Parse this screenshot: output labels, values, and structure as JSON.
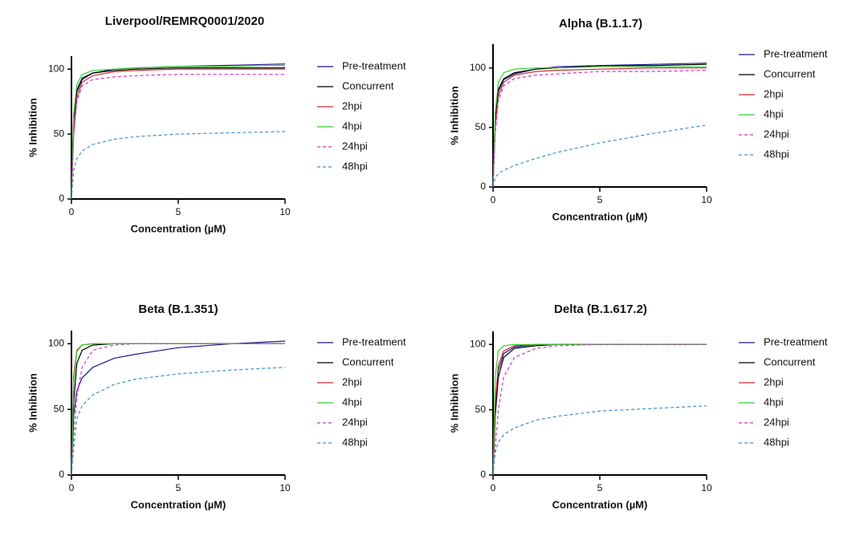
{
  "chart_data": [
    {
      "type": "line",
      "title": "Liverpool/REMRQ0001/2020",
      "x_label": "Concentration (µM)",
      "y_label": "% Inhibition",
      "x": [
        0,
        0.1,
        0.25,
        0.5,
        1,
        2,
        3,
        5,
        7.5,
        10
      ],
      "xlim": [
        0,
        10
      ],
      "xticks": [
        0,
        5,
        10
      ],
      "ylim": [
        0,
        110
      ],
      "yticks": [
        0,
        50,
        100
      ],
      "series": [
        {
          "name": "Pre-treatment",
          "color": "#1b1b8f",
          "dashed": false,
          "values": [
            0,
            60,
            82,
            92,
            97,
            100,
            101,
            102,
            103,
            104
          ]
        },
        {
          "name": "Concurrent",
          "color": "#000000",
          "dashed": false,
          "values": [
            0,
            62,
            84,
            93,
            97,
            99,
            100,
            101,
            101,
            101
          ]
        },
        {
          "name": "2hpi",
          "color": "#d42a2a",
          "dashed": false,
          "values": [
            0,
            50,
            78,
            90,
            95,
            98,
            99,
            100,
            100,
            100
          ]
        },
        {
          "name": "4hpi",
          "color": "#33cc33",
          "dashed": false,
          "values": [
            0,
            65,
            88,
            96,
            99,
            100,
            101,
            102,
            102,
            103
          ]
        },
        {
          "name": "24hpi",
          "color": "#cc33cc",
          "dashed": true,
          "values": [
            0,
            50,
            75,
            87,
            92,
            94,
            95,
            96,
            96,
            96
          ]
        },
        {
          "name": "48hpi",
          "color": "#3a8fd0",
          "dashed": true,
          "values": [
            0,
            22,
            31,
            37,
            42,
            46,
            48,
            50,
            51,
            52
          ]
        }
      ]
    },
    {
      "type": "line",
      "title": "Alpha (B.1.1.7)",
      "x_label": "Concentration (µM)",
      "y_label": "% Inhibition",
      "x": [
        0,
        0.1,
        0.25,
        0.5,
        1,
        2,
        3,
        5,
        7.5,
        10
      ],
      "xlim": [
        0,
        10
      ],
      "xticks": [
        0,
        5,
        10
      ],
      "ylim": [
        0,
        120
      ],
      "yticks": [
        0,
        50,
        100
      ],
      "series": [
        {
          "name": "Pre-treatment",
          "color": "#1b1b8f",
          "dashed": false,
          "values": [
            0,
            55,
            80,
            90,
            95,
            99,
            101,
            102,
            103,
            104
          ]
        },
        {
          "name": "Concurrent",
          "color": "#000000",
          "dashed": false,
          "values": [
            0,
            58,
            82,
            91,
            96,
            99,
            100,
            102,
            102,
            103
          ]
        },
        {
          "name": "2hpi",
          "color": "#d42a2a",
          "dashed": false,
          "values": [
            0,
            50,
            76,
            88,
            94,
            97,
            98,
            99,
            100,
            100
          ]
        },
        {
          "name": "4hpi",
          "color": "#33cc33",
          "dashed": false,
          "values": [
            0,
            62,
            88,
            96,
            99,
            100,
            100,
            101,
            101,
            101
          ]
        },
        {
          "name": "24hpi",
          "color": "#cc33cc",
          "dashed": true,
          "values": [
            0,
            45,
            72,
            85,
            91,
            94,
            95,
            97,
            97,
            98
          ]
        },
        {
          "name": "48hpi",
          "color": "#3a8fd0",
          "dashed": true,
          "values": [
            0,
            8,
            11,
            14,
            18,
            24,
            29,
            37,
            45,
            52
          ]
        }
      ]
    },
    {
      "type": "line",
      "title": "Beta (B.1.351)",
      "x_label": "Concentration (µM)",
      "y_label": "% Inhibition",
      "x": [
        0,
        0.1,
        0.25,
        0.5,
        1,
        2,
        3,
        5,
        7.5,
        10
      ],
      "xlim": [
        0,
        10
      ],
      "xticks": [
        0,
        5,
        10
      ],
      "ylim": [
        0,
        110
      ],
      "yticks": [
        0,
        50,
        100
      ],
      "series": [
        {
          "name": "Pre-treatment",
          "color": "#1b1b8f",
          "dashed": false,
          "values": [
            0,
            45,
            64,
            74,
            82,
            89,
            92,
            97,
            100,
            102
          ]
        },
        {
          "name": "Concurrent",
          "color": "#000000",
          "dashed": false,
          "values": [
            0,
            55,
            85,
            95,
            99,
            100,
            100,
            100,
            100,
            100
          ]
        },
        {
          "name": "2hpi",
          "color": "#d42a2a",
          "dashed": false,
          "values": [
            0,
            75,
            95,
            99,
            100,
            100,
            100,
            100,
            100,
            100
          ]
        },
        {
          "name": "4hpi",
          "color": "#33cc33",
          "dashed": false,
          "values": [
            0,
            70,
            94,
            99,
            100,
            100,
            100,
            100,
            100,
            100
          ]
        },
        {
          "name": "24hpi",
          "color": "#cc33cc",
          "dashed": true,
          "values": [
            0,
            30,
            60,
            82,
            95,
            99,
            100,
            100,
            100,
            100
          ]
        },
        {
          "name": "48hpi",
          "color": "#3a8fd0",
          "dashed": true,
          "values": [
            0,
            20,
            43,
            53,
            61,
            69,
            73,
            77,
            80,
            82
          ]
        }
      ]
    },
    {
      "type": "line",
      "title": "Delta (B.1.617.2)",
      "x_label": "Concentration (µM)",
      "y_label": "% Inhibition",
      "x": [
        0,
        0.1,
        0.25,
        0.5,
        1,
        2,
        3,
        5,
        7.5,
        10
      ],
      "xlim": [
        0,
        10
      ],
      "xticks": [
        0,
        5,
        10
      ],
      "ylim": [
        0,
        110
      ],
      "yticks": [
        0,
        50,
        100
      ],
      "series": [
        {
          "name": "Pre-treatment",
          "color": "#1b1b8f",
          "dashed": false,
          "values": [
            0,
            50,
            80,
            93,
            98,
            100,
            100,
            100,
            100,
            100
          ]
        },
        {
          "name": "Concurrent",
          "color": "#000000",
          "dashed": false,
          "values": [
            0,
            45,
            75,
            90,
            97,
            99,
            100,
            100,
            100,
            100
          ]
        },
        {
          "name": "2hpi",
          "color": "#d42a2a",
          "dashed": false,
          "values": [
            0,
            55,
            84,
            95,
            99,
            100,
            100,
            100,
            100,
            100
          ]
        },
        {
          "name": "4hpi",
          "color": "#33cc33",
          "dashed": false,
          "values": [
            0,
            75,
            95,
            99,
            100,
            100,
            100,
            100,
            100,
            100
          ]
        },
        {
          "name": "24hpi",
          "color": "#cc33cc",
          "dashed": true,
          "values": [
            0,
            20,
            50,
            75,
            90,
            97,
            99,
            100,
            100,
            100
          ]
        },
        {
          "name": "48hpi",
          "color": "#3a8fd0",
          "dashed": true,
          "values": [
            0,
            17,
            25,
            31,
            36,
            42,
            45,
            49,
            51,
            53
          ]
        }
      ]
    }
  ]
}
